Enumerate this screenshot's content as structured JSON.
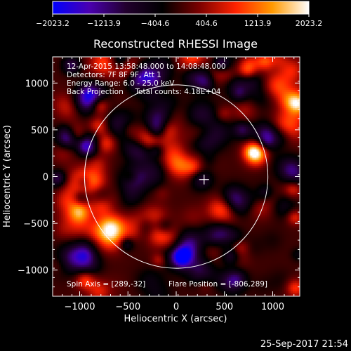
{
  "chart_data": {
    "type": "heatmap",
    "title": "Reconstructed RHESSI Image",
    "xlabel": "Heliocentric X (arcsec)",
    "ylabel": "Heliocentric Y (arcsec)",
    "xlim": [
      -1280,
      1280
    ],
    "ylim": [
      -1280,
      1280
    ],
    "x_ticks": [
      -1000,
      -500,
      0,
      500,
      1000
    ],
    "x_tick_labels": [
      "−1000",
      "−500",
      "0",
      "500",
      "1000"
    ],
    "y_ticks": [
      -1000,
      -500,
      0,
      500,
      1000
    ],
    "y_tick_labels": [
      "−1000",
      "−500",
      "0",
      "500",
      "1000"
    ],
    "colorbar": {
      "min": -2023.2,
      "max": 2023.2,
      "ticks": [
        -2023.2,
        -1213.9,
        -404.6,
        404.6,
        1213.9,
        2023.2
      ],
      "tick_labels": [
        "−2023.2",
        "−1213.9",
        "−404.6",
        "404.6",
        "1213.9",
        "2023.2"
      ]
    },
    "annotations": [
      "12-Apr-2015 13:58:48.000 to 14:08:48.000",
      "Detectors: 7F 8F 9F, Att 1",
      "Energy Range: 6.0 - 25.0 keV",
      "Back Projection     Total counts: 4.18E+04"
    ],
    "spin_axis": "Spin Axis = [289,-32]",
    "flare_position": "Flare Position = [-806,289]",
    "spin_axis_point": [
      289,
      -32
    ],
    "solar_limb_radius": 950,
    "colormap": [
      "#0000ff",
      "#4a00b0",
      "#22002e",
      "#000000",
      "#7a0000",
      "#ff2200",
      "#ff9a00",
      "#ffffff"
    ]
  },
  "footer": {
    "timestamp": "25-Sep-2017 21:54"
  }
}
